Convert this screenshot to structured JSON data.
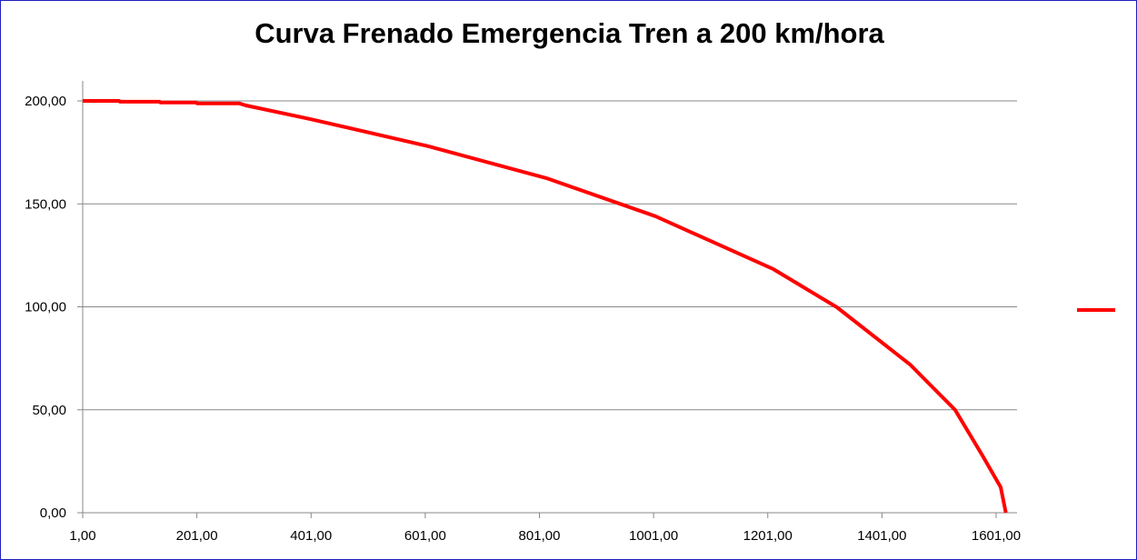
{
  "chart_data": {
    "type": "line",
    "title": "Curva Frenado Emergencia Tren a 200 km/hora",
    "xlabel": "",
    "ylabel": "",
    "xlim": [
      1,
      1637
    ],
    "ylim": [
      0,
      200
    ],
    "x_ticks": [
      "1,00",
      "201,00",
      "401,00",
      "601,00",
      "801,00",
      "1001,00",
      "1201,00",
      "1401,00",
      "1601,00"
    ],
    "x_tick_values": [
      1,
      201,
      401,
      601,
      801,
      1001,
      1201,
      1401,
      1601
    ],
    "y_ticks": [
      "0,00",
      "50,00",
      "100,00",
      "150,00",
      "200,00"
    ],
    "y_tick_values": [
      0,
      50,
      100,
      150,
      200
    ],
    "grid": "horizontal",
    "legend": "right",
    "series": [
      {
        "color": "#ff0000",
        "x": [
          1,
          65,
          66,
          136,
          137,
          200,
          201,
          275,
          287,
          399,
          606,
          813,
          1004,
          1211,
          1322,
          1450,
          1529,
          1577,
          1609,
          1618
        ],
        "y": [
          200,
          200,
          199.6,
          199.6,
          199.2,
          199.2,
          198.8,
          198.8,
          197.8,
          191.2,
          178,
          162.5,
          144,
          118.3,
          99.8,
          72,
          50,
          27.8,
          12.4,
          0
        ]
      }
    ]
  }
}
